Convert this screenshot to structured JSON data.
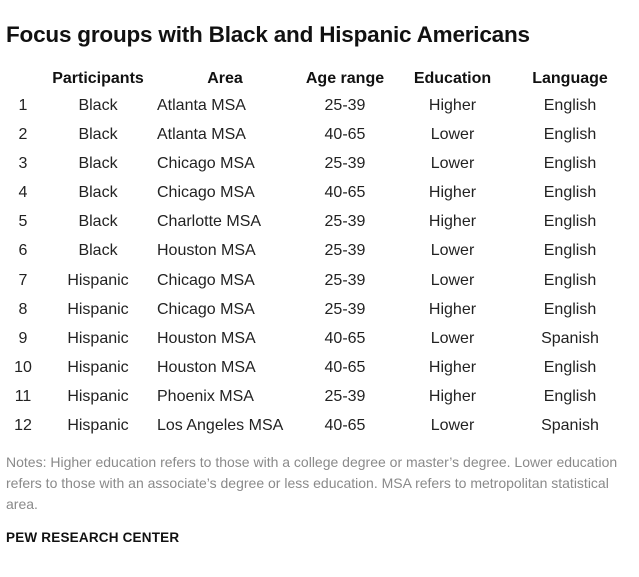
{
  "title": "Focus groups with Black and Hispanic Americans",
  "columns": [
    "",
    "Participants",
    "Area",
    "Age range",
    "Education",
    "Language"
  ],
  "rows": [
    [
      "1",
      "Black",
      "Atlanta MSA",
      "25-39",
      "Higher",
      "English"
    ],
    [
      "2",
      "Black",
      "Atlanta MSA",
      "40-65",
      "Lower",
      "English"
    ],
    [
      "3",
      "Black",
      "Chicago MSA",
      "25-39",
      "Lower",
      "English"
    ],
    [
      "4",
      "Black",
      "Chicago MSA",
      "40-65",
      "Higher",
      "English"
    ],
    [
      "5",
      "Black",
      "Charlotte MSA",
      "25-39",
      "Higher",
      "English"
    ],
    [
      "6",
      "Black",
      "Houston MSA",
      "25-39",
      "Lower",
      "English"
    ],
    [
      "7",
      "Hispanic",
      "Chicago MSA",
      "25-39",
      "Lower",
      "English"
    ],
    [
      "8",
      "Hispanic",
      "Chicago MSA",
      "25-39",
      "Higher",
      "English"
    ],
    [
      "9",
      "Hispanic",
      "Houston MSA",
      "40-65",
      "Lower",
      "Spanish"
    ],
    [
      "10",
      "Hispanic",
      "Houston MSA",
      "40-65",
      "Higher",
      "English"
    ],
    [
      "11",
      "Hispanic",
      "Phoenix MSA",
      "25-39",
      "Higher",
      "English"
    ],
    [
      "12",
      "Hispanic",
      "Los Angeles MSA",
      "40-65",
      "Lower",
      "Spanish"
    ]
  ],
  "notes": "Notes: Higher education refers to those with a college degree or master’s degree. Lower education refers to those with an associate’s degree or less education. MSA refers to metropolitan statistical area.",
  "source": "PEW RESEARCH CENTER"
}
